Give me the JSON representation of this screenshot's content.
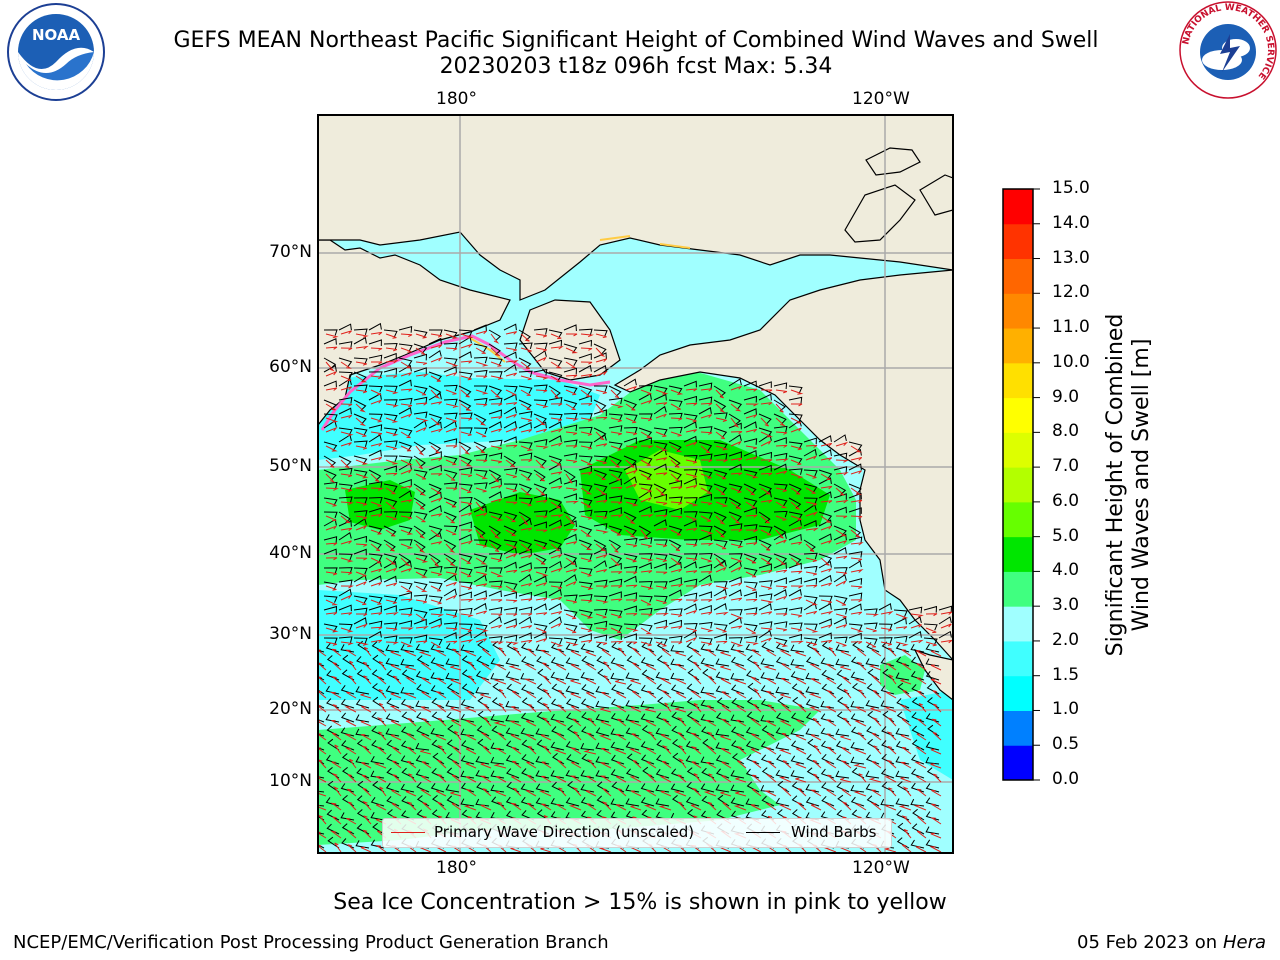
{
  "title": {
    "line1": "GEFS MEAN Northeast Pacific Significant Height of Combined Wind Waves and Swell",
    "line2": "20230203 t18z 096h fcst   Max: 5.34"
  },
  "map": {
    "lon_labels": [
      "180°",
      "120°W"
    ],
    "lat_labels": [
      "70°N",
      "60°N",
      "50°N",
      "40°N",
      "30°N",
      "20°N",
      "10°N"
    ],
    "land_color": "#efecdc",
    "ocean_color": "#a0ffff",
    "legend": {
      "wave_direction": "Primary Wave Direction (unscaled)",
      "wind_barbs": "Wind Barbs",
      "wave_direction_color": "#e0201a",
      "wind_barbs_color": "#000000"
    }
  },
  "colorbar": {
    "label_line1": "Significant Height of Combined",
    "label_line2": "Wind Waves and Swell [m]",
    "ticks": [
      "15.0",
      "14.0",
      "13.0",
      "12.0",
      "11.0",
      "10.0",
      "9.0",
      "8.0",
      "7.0",
      "6.0",
      "5.0",
      "4.0",
      "3.0",
      "2.0",
      "1.5",
      "1.0",
      "0.5",
      "0.0"
    ],
    "colors": [
      "#0000ff",
      "#0080ff",
      "#00ffff",
      "#40ffff",
      "#a0ffff",
      "#40ff80",
      "#00e600",
      "#66ff00",
      "#b3ff00",
      "#ddff00",
      "#ffff00",
      "#ffe000",
      "#ffb000",
      "#ff8800",
      "#ff6600",
      "#ff3300",
      "#ff0000"
    ]
  },
  "footer": {
    "note": "Sea Ice Concentration > 15% is shown in pink to yellow",
    "left": "NCEP/EMC/Verification Post Processing Product Generation Branch",
    "right_date": "05 Feb 2023 on",
    "right_machine": "Hera"
  },
  "logos": {
    "noaa_text": "NOAA",
    "nws_ring_text": "NATIONAL WEATHER SERVICE"
  }
}
